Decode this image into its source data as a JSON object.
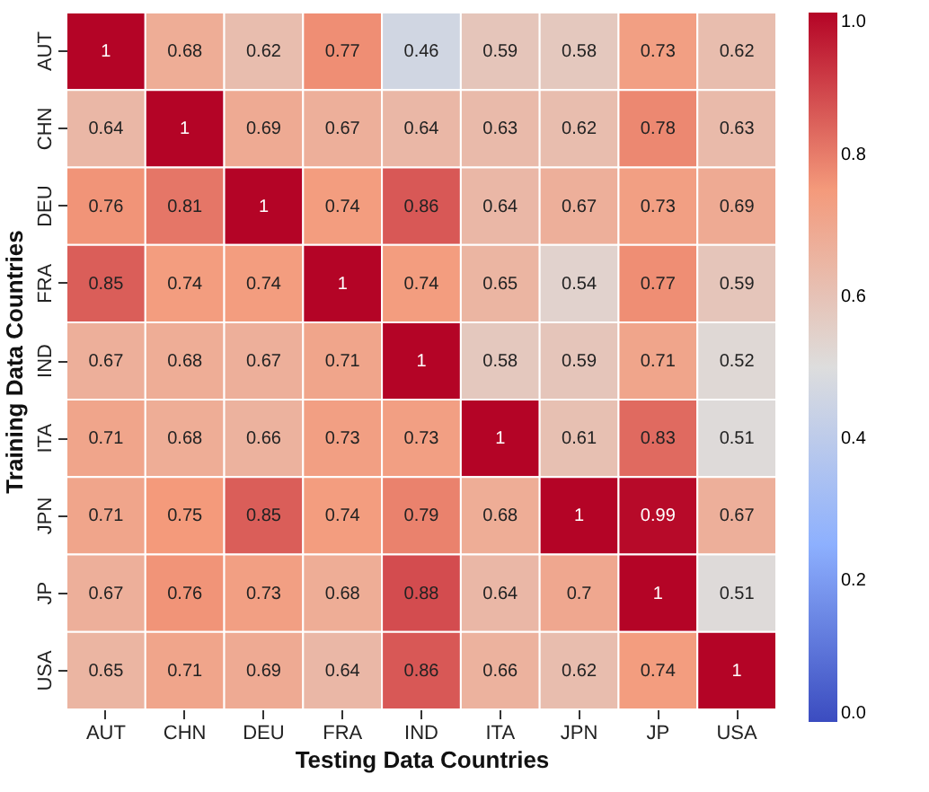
{
  "chart_data": {
    "type": "heatmap",
    "xlabel": "Testing Data Countries",
    "ylabel": "Training Data Countries",
    "categories": [
      "AUT",
      "CHN",
      "DEU",
      "FRA",
      "IND",
      "ITA",
      "JPN",
      "JP",
      "USA"
    ],
    "y_categories": [
      "AUT",
      "CHN",
      "DEU",
      "FRA",
      "IND",
      "ITA",
      "JPN",
      "JP",
      "USA"
    ],
    "cells": [
      [
        1,
        0.68,
        0.62,
        0.77,
        0.46,
        0.59,
        0.58,
        0.73,
        0.62
      ],
      [
        0.64,
        1,
        0.69,
        0.67,
        0.64,
        0.63,
        0.62,
        0.78,
        0.63
      ],
      [
        0.76,
        0.81,
        1,
        0.74,
        0.86,
        0.64,
        0.67,
        0.73,
        0.69
      ],
      [
        0.85,
        0.74,
        0.74,
        1,
        0.74,
        0.65,
        0.54,
        0.77,
        0.59
      ],
      [
        0.67,
        0.68,
        0.67,
        0.71,
        1,
        0.58,
        0.59,
        0.71,
        0.52
      ],
      [
        0.71,
        0.68,
        0.66,
        0.73,
        0.73,
        1,
        0.61,
        0.83,
        0.51
      ],
      [
        0.71,
        0.75,
        0.85,
        0.74,
        0.79,
        0.68,
        1,
        0.99,
        0.67
      ],
      [
        0.67,
        0.76,
        0.73,
        0.68,
        0.88,
        0.64,
        0.7,
        1,
        0.51
      ],
      [
        0.65,
        0.71,
        0.69,
        0.64,
        0.86,
        0.66,
        0.62,
        0.74,
        1
      ]
    ],
    "clim": [
      0,
      1
    ],
    "cticks": [
      {
        "value": 0,
        "label": "0.0"
      },
      {
        "value": 0.2,
        "label": "0.2"
      },
      {
        "value": 0.4,
        "label": "0.4"
      },
      {
        "value": 0.6,
        "label": "0.6"
      },
      {
        "value": 0.8,
        "label": "0.8"
      },
      {
        "value": 1,
        "label": "1.0"
      }
    ],
    "data_labels": true
  }
}
